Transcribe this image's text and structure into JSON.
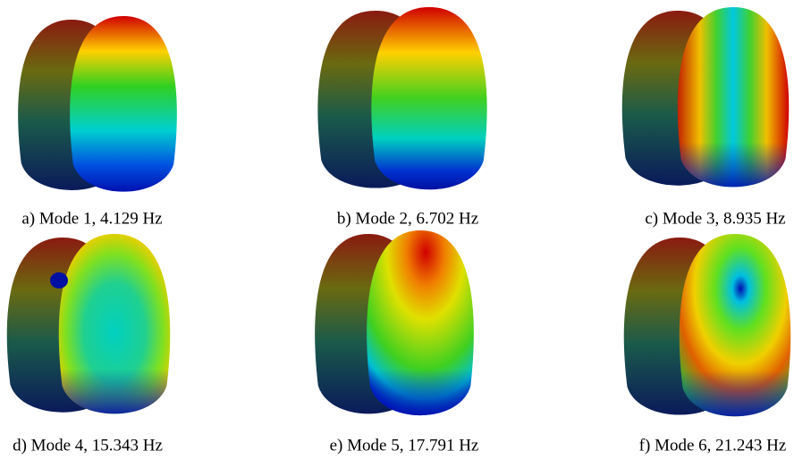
{
  "figure": {
    "panels": [
      {
        "caption": "a) Mode 1, 4.129 Hz"
      },
      {
        "caption": "b) Mode 2, 6.702 Hz"
      },
      {
        "caption": "c) Mode 3, 8.935 Hz"
      },
      {
        "caption": "d) Mode 4, 15.343 Hz"
      },
      {
        "caption": "e) Mode 5, 17.791 Hz"
      },
      {
        "caption": "f) Mode 6, 21.243 Hz"
      }
    ]
  }
}
